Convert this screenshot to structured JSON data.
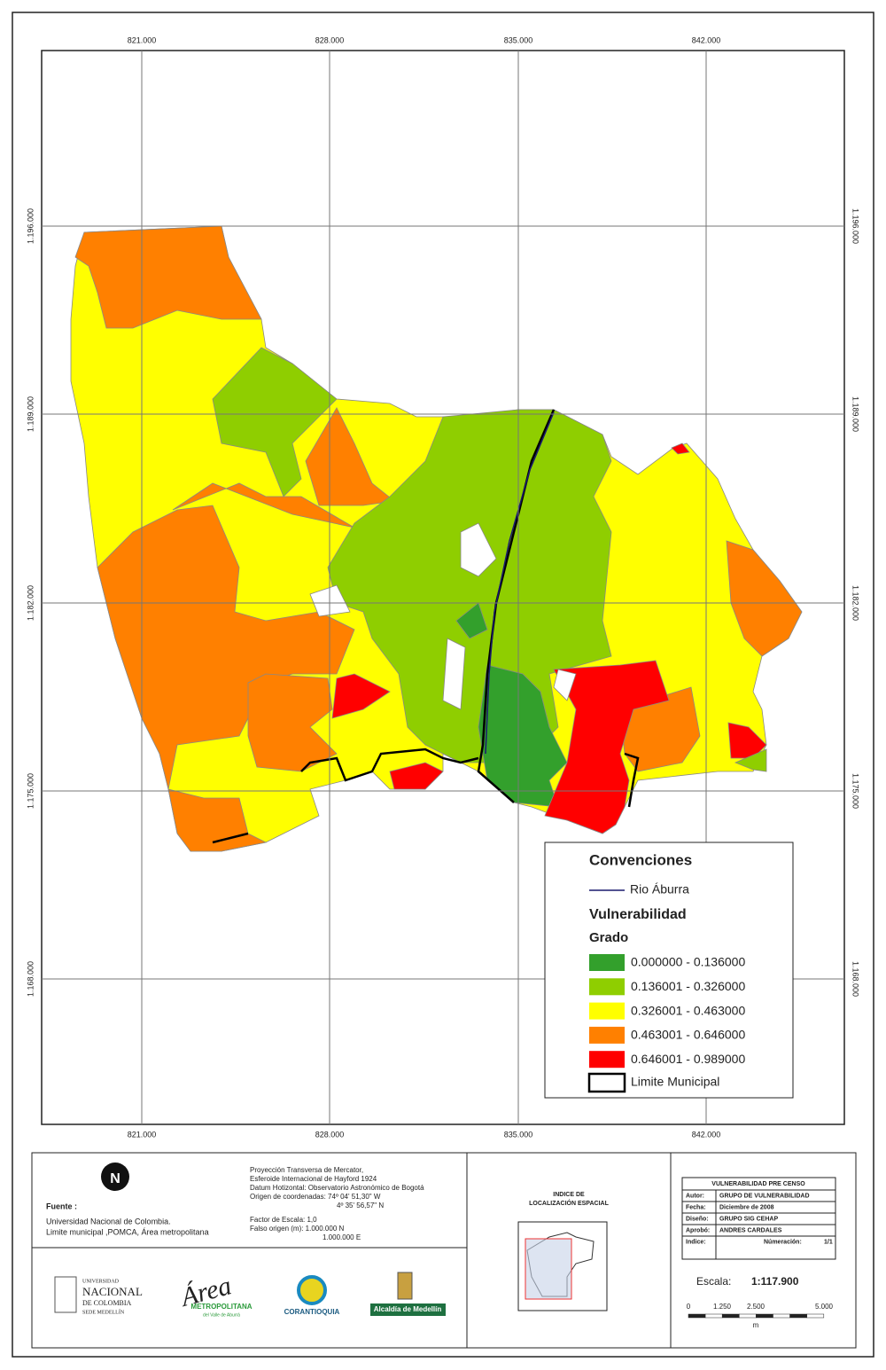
{
  "map": {
    "grid_x_labels": [
      "821.000",
      "828.000",
      "835.000",
      "842.000"
    ],
    "grid_y_labels": [
      "1.196.000",
      "1.189.000",
      "1.182.000",
      "1.175.000",
      "1.168.000"
    ],
    "legend": {
      "title": "Convenciones",
      "river": "Rio Áburra",
      "river_color": "#1a1a6e",
      "theme": "Vulnerabilidad",
      "subtitle": "Grado",
      "classes": [
        {
          "label": "0.000000 - 0.136000",
          "color": "#33a02c"
        },
        {
          "label": "0.136001 - 0.326000",
          "color": "#8fce00"
        },
        {
          "label": "0.326001 - 0.463000",
          "color": "#ffff00"
        },
        {
          "label": "0.463001 - 0.646000",
          "color": "#ff8000"
        },
        {
          "label": "0.646001 - 0.989000",
          "color": "#ff0000"
        }
      ],
      "boundary": "Limite Municipal"
    }
  },
  "footer": {
    "source_title": "Fuente :",
    "source_lines": [
      "Universidad Nacional de Colombia.",
      "Limite municipal ,POMCA, Área metropolitana"
    ],
    "projection_lines": [
      "Proyección Transversa de Mercator,",
      "Esferoide Internacional de Hayford 1924",
      "Datum Hotizontal: Observatorio Astronómico de Bogotá",
      "Origen de coordenadas: 74º 04' 51,30\" W",
      "4º 35' 56,57\" N",
      "Factor de Escala: 1,0",
      "Falso origen (m): 1.000.000 N",
      "1.000.000 E"
    ],
    "index_title": [
      "INDICE DE",
      "LOCALIZACIÓN ESPACIAL"
    ],
    "logos": {
      "unal": [
        "UNIVERSIDAD",
        "NACIONAL",
        "DE COLOMBIA",
        "SEDE MEDELLÍN"
      ],
      "area": [
        "Área",
        "METROPOLITANA",
        "del Valle de Aburrá"
      ],
      "corantioquia": "CORANTIOQUIA",
      "alcaldia": "Alcaldía de Medellín"
    },
    "info_table": {
      "title": "VULNERABILIDAD PRE CENSO",
      "rows": [
        [
          "Autor:",
          "GRUPO DE VULNERABILIDAD"
        ],
        [
          "Fecha:",
          "Diciembre de 2008"
        ],
        [
          "Diseño:",
          "GRUPO SIG CEHAP"
        ],
        [
          "Aprobó:",
          "ANDRES CARDALES"
        ],
        [
          "Indice:",
          "Númeración:",
          "1/1"
        ]
      ]
    },
    "scale_label": "Escala:",
    "scale_value": "1:117.900",
    "scale_bar_labels": [
      "0",
      "1.250",
      "2.500",
      "5.000"
    ],
    "scale_unit": "m"
  }
}
